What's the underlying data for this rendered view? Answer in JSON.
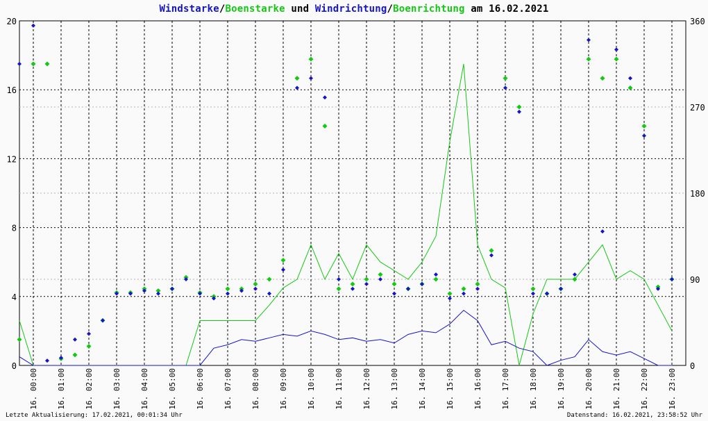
{
  "title": {
    "part1": "Windstarke",
    "sep1": "/",
    "part2": "Boenstarke",
    "mid": " und ",
    "part3": "Windrichtung",
    "sep2": "/",
    "part4": "Boenrichtung",
    "date": " am 16.02.2021"
  },
  "footer": {
    "left": "Letzte Aktualisierung: 17.02.2021, 00:01:34 Uhr",
    "right": "Datenstand: 16.02.2021, 23:58:52 Uhr"
  },
  "colors": {
    "wind": "#1414c8",
    "gust": "#14c814",
    "grid": "#000000",
    "background": "#fafafa"
  },
  "chart_data": {
    "type": "line",
    "date": "16.02.2021",
    "x_tick_labels": [
      "16. 00:00",
      "16. 01:00",
      "16. 02:00",
      "16. 03:00",
      "16. 04:00",
      "16. 05:00",
      "16. 06:00",
      "16. 07:00",
      "16. 08:00",
      "16. 09:00",
      "16. 10:00",
      "16. 11:00",
      "16. 12:00",
      "16. 13:00",
      "16. 14:00",
      "16. 15:00",
      "16. 16:00",
      "16. 17:00",
      "16. 18:00",
      "16. 19:00",
      "16. 20:00",
      "16. 21:00",
      "16. 22:00",
      "16. 23:00"
    ],
    "y_left": {
      "range": [
        0,
        20
      ],
      "ticks": [
        "0",
        "4",
        "8",
        "12",
        "16",
        "20"
      ]
    },
    "y_right": {
      "range": [
        0,
        360
      ],
      "ticks": [
        "0",
        "90",
        "180",
        "270",
        "360"
      ]
    },
    "grid": true,
    "hours": [
      0,
      0.5,
      1,
      1.5,
      2,
      2.5,
      3,
      3.5,
      4,
      4.5,
      5,
      5.5,
      6,
      6.5,
      7,
      7.5,
      8,
      8.5,
      9,
      9.5,
      10,
      10.5,
      11,
      11.5,
      12,
      12.5,
      13,
      13.5,
      14,
      14.5,
      15,
      15.5,
      16,
      16.5,
      17,
      17.5,
      18,
      18.5,
      19,
      19.5,
      20,
      20.5,
      21,
      21.5,
      22,
      22.5,
      23,
      23.5
    ],
    "series": [
      {
        "name": "Windstarke",
        "axis": "left",
        "values": [
          0.5,
          0,
          0,
          0,
          0,
          0,
          0,
          0,
          0,
          0,
          0,
          0,
          0,
          0,
          1.0,
          1.2,
          1.5,
          1.4,
          1.6,
          1.8,
          1.7,
          2.0,
          1.8,
          1.5,
          1.6,
          1.4,
          1.5,
          1.3,
          1.8,
          2.0,
          1.9,
          2.4,
          3.2,
          2.6,
          1.2,
          1.4,
          1.0,
          0.8,
          0,
          0.3,
          0.5,
          1.5,
          0.8,
          0.6,
          0.8,
          0.4,
          0,
          0
        ]
      },
      {
        "name": "Boenstarke",
        "axis": "left",
        "values": [
          2.6,
          0,
          0,
          0,
          0,
          0,
          0,
          0,
          0,
          0,
          0,
          0,
          0,
          2.6,
          2.6,
          2.6,
          2.6,
          2.6,
          3.5,
          4.5,
          5.0,
          7.0,
          5.0,
          6.5,
          5.0,
          7.0,
          6.0,
          5.5,
          5.0,
          6.0,
          7.5,
          13.0,
          17.5,
          7.0,
          5.0,
          4.5,
          0,
          3.0,
          5.0,
          5.0,
          5.0,
          6.0,
          7.0,
          5.0,
          5.5,
          5.0,
          3.5,
          2.0
        ]
      },
      {
        "name": "Windrichtung",
        "axis": "right",
        "values": [
          315,
          355,
          5,
          8,
          27,
          33,
          47,
          75,
          75,
          78,
          75,
          80,
          90,
          75,
          70,
          75,
          78,
          80,
          75,
          100,
          290,
          300,
          280,
          90,
          80,
          85,
          90,
          75,
          80,
          85,
          95,
          70,
          75,
          80,
          115,
          290,
          265,
          75,
          75,
          80,
          95,
          340,
          140,
          330,
          300,
          240,
          80,
          90
        ]
      },
      {
        "name": "Boenrichtung",
        "axis": "right",
        "values": [
          27,
          315,
          315,
          7,
          11,
          20,
          47,
          76,
          76,
          80,
          78,
          80,
          92,
          76,
          72,
          80,
          80,
          85,
          90,
          110,
          300,
          320,
          250,
          80,
          85,
          90,
          95,
          85,
          80,
          85,
          90,
          75,
          80,
          85,
          120,
          300,
          270,
          80,
          75,
          80,
          90,
          320,
          300,
          320,
          290,
          250,
          82,
          90
        ]
      }
    ]
  }
}
